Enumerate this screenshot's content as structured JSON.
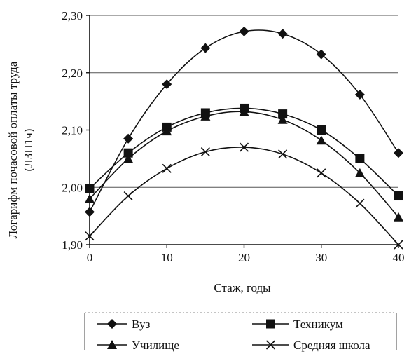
{
  "chart_data": {
    "type": "line",
    "xlabel": "Стаж, годы",
    "ylabel_line1": "Логарифм почасовой оплаты труда",
    "ylabel_line2": "(ЛЗП1ч)",
    "xlim": [
      0,
      40
    ],
    "ylim": [
      1.9,
      2.3
    ],
    "x_ticks": [
      "0",
      "10",
      "20",
      "30",
      "40"
    ],
    "y_ticks": [
      "1,90",
      "2,00",
      "2,10",
      "2,20",
      "2,30"
    ],
    "grid": "horizontal",
    "legend_position": "bottom",
    "x": [
      0,
      5,
      10,
      15,
      20,
      25,
      30,
      35,
      40
    ],
    "series": [
      {
        "name": "Вуз",
        "marker": "diamond",
        "values": [
          1.957,
          2.085,
          2.18,
          2.243,
          2.272,
          2.268,
          2.232,
          2.162,
          2.06
        ]
      },
      {
        "name": "Техникум",
        "marker": "square",
        "values": [
          1.998,
          2.06,
          2.105,
          2.13,
          2.138,
          2.128,
          2.1,
          2.05,
          1.985
        ]
      },
      {
        "name": "Училище",
        "marker": "triangle",
        "values": [
          1.98,
          2.05,
          2.098,
          2.124,
          2.132,
          2.118,
          2.082,
          2.025,
          1.948
        ]
      },
      {
        "name": "Средняя школа",
        "marker": "x",
        "values": [
          1.915,
          1.985,
          2.033,
          2.062,
          2.07,
          2.058,
          2.025,
          1.972,
          1.9
        ]
      }
    ]
  }
}
